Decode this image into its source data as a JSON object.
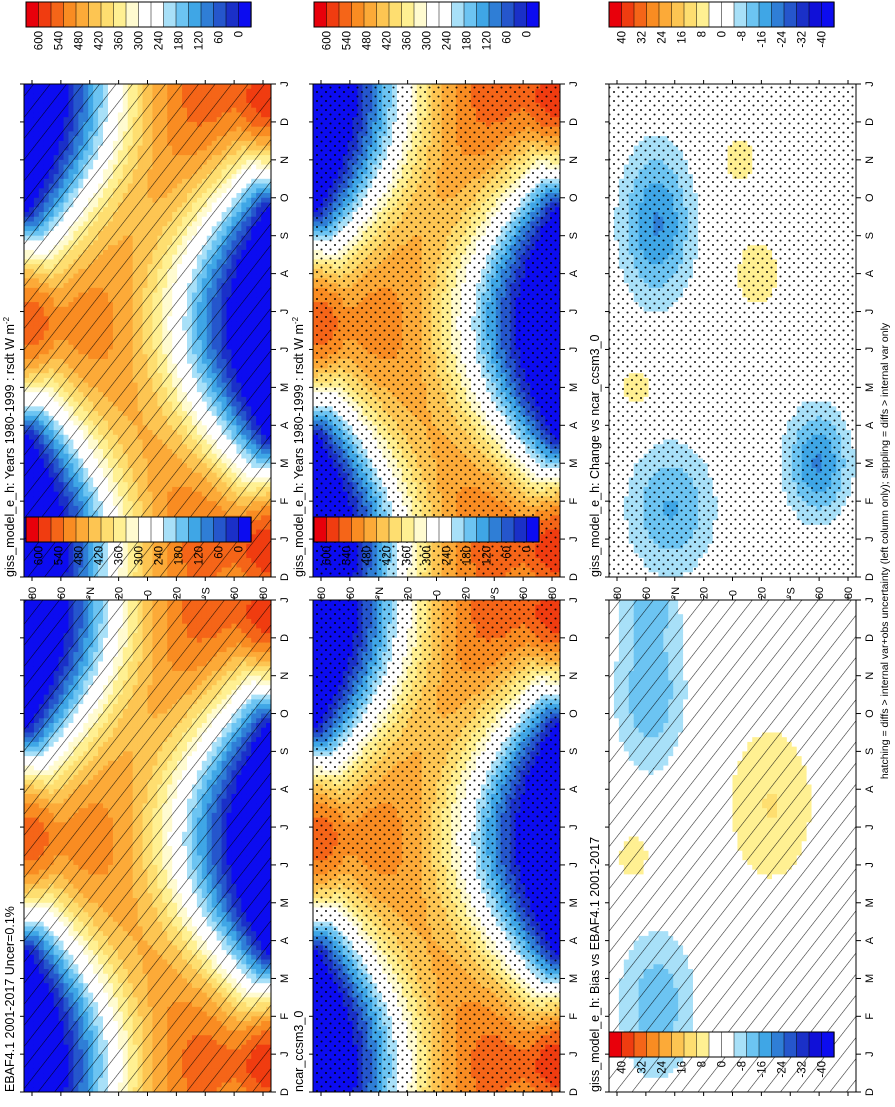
{
  "footnote": "hatching = diffs > internal var+obs uncertainty (left column only); stippling = diffs > internal var only",
  "chart_data": [
    {
      "type": "heatmap",
      "title": "giss_model_e_h: Years 1980-1999 : rsdt W m",
      "title_sup": "-2",
      "month_ticks": [
        "D",
        "J",
        "F",
        "M",
        "A",
        "M",
        "J",
        "J",
        "A",
        "S",
        "O",
        "N",
        "D",
        "J"
      ],
      "lat_ticks": [
        "80",
        "60",
        "°N",
        "20",
        "0",
        "20",
        "°S",
        "60",
        "80"
      ],
      "colorbar": {
        "labels": [
          "600",
          "540",
          "480",
          "420",
          "360",
          "300",
          "240",
          "180",
          "120",
          "60",
          "0"
        ],
        "kind": "abs"
      },
      "overlay": "hatch",
      "field": "abs"
    },
    {
      "type": "heatmap",
      "title": "giss_model_e_h: Years 1980-1999 : rsdt W m",
      "title_sup": "-2",
      "month_ticks": [
        "D",
        "J",
        "F",
        "M",
        "A",
        "M",
        "J",
        "J",
        "A",
        "S",
        "O",
        "N",
        "D",
        "J"
      ],
      "lat_ticks": [
        "80",
        "60",
        "°N",
        "20",
        "0",
        "20",
        "°S",
        "60",
        "80"
      ],
      "colorbar": {
        "labels": [
          "600",
          "540",
          "480",
          "420",
          "360",
          "300",
          "240",
          "180",
          "120",
          "60",
          "0"
        ],
        "kind": "abs"
      },
      "overlay": "stipple",
      "field": "abs"
    },
    {
      "type": "heatmap",
      "title": "EBAF4.1 2001-2017 Uncer=0.1%",
      "title_sup": "",
      "month_ticks": [
        "D",
        "J",
        "F",
        "M",
        "A",
        "M",
        "J",
        "J",
        "A",
        "S",
        "O",
        "N",
        "D",
        "J"
      ],
      "lat_ticks": [
        "80",
        "60",
        "°N",
        "20",
        "0",
        "20",
        "°S",
        "60",
        "80"
      ],
      "colorbar": {
        "labels": [
          "600",
          "540",
          "480",
          "420",
          "360",
          "300",
          "240",
          "180",
          "120",
          "60",
          "0"
        ],
        "kind": "abs"
      },
      "overlay": "hatch",
      "field": "abs"
    },
    {
      "type": "heatmap",
      "title": "ncar_ccsm3_0",
      "title_sup": "",
      "month_ticks": [
        "D",
        "J",
        "F",
        "M",
        "A",
        "M",
        "J",
        "J",
        "A",
        "S",
        "O",
        "N",
        "D",
        "J"
      ],
      "lat_ticks": [
        "80",
        "60",
        "°N",
        "20",
        "0",
        "20",
        "°S",
        "60",
        "80"
      ],
      "colorbar": {
        "labels": [
          "600",
          "540",
          "480",
          "420",
          "360",
          "300",
          "240",
          "180",
          "120",
          "60",
          "0"
        ],
        "kind": "abs"
      },
      "overlay": "stipple",
      "field": "abs"
    },
    {
      "type": "heatmap",
      "title": "giss_model_e_h: Bias vs EBAF4.1 2001-2017",
      "title_sup": "",
      "month_ticks": [
        "D",
        "J",
        "F",
        "M",
        "A",
        "M",
        "J",
        "J",
        "A",
        "S",
        "O",
        "N",
        "D",
        "J"
      ],
      "lat_ticks": [
        "80",
        "60",
        "°N",
        "20",
        "0",
        "20",
        "°S",
        "60",
        "80"
      ],
      "colorbar": {
        "labels": [
          "40",
          "32",
          "24",
          "16",
          "8",
          "0",
          "-8",
          "-16",
          "-24",
          "-32",
          "-40"
        ],
        "kind": "diff"
      },
      "overlay": "hatch",
      "field": "bias"
    },
    {
      "type": "heatmap",
      "title": "giss_model_e_h: Change vs ncar_ccsm3_0",
      "title_sup": "",
      "month_ticks": [
        "D",
        "J",
        "F",
        "M",
        "A",
        "M",
        "J",
        "J",
        "A",
        "S",
        "O",
        "N",
        "D",
        "J"
      ],
      "lat_ticks": [
        "80",
        "60",
        "°N",
        "20",
        "0",
        "20",
        "°S",
        "60",
        "80"
      ],
      "colorbar": {
        "labels": [
          "40",
          "32",
          "24",
          "16",
          "8",
          "0",
          "-8",
          "-16",
          "-24",
          "-32",
          "-40"
        ],
        "kind": "diff"
      },
      "overlay": "stipple",
      "field": "change"
    }
  ],
  "colors": {
    "abs_scale": [
      "#e8000b",
      "#f03c10",
      "#f56518",
      "#f98c22",
      "#fcaa38",
      "#fdc552",
      "#fede70",
      "#fff092",
      "#fffbd0",
      "#ffffff",
      "#ffffff",
      "#a8e0f8",
      "#6cc4f2",
      "#3fa6e6",
      "#2f7ed6",
      "#2556cc",
      "#1a30c8",
      "#0c0cf0"
    ],
    "diff_scale": [
      "#e8000b",
      "#f03c10",
      "#f56518",
      "#f98c22",
      "#fcaa38",
      "#fdc552",
      "#fede70",
      "#fff092",
      "#ffffff",
      "#ffffff",
      "#a8e0f8",
      "#6cc4f2",
      "#3fa6e6",
      "#2f7ed6",
      "#2556cc",
      "#1a30c8",
      "#1010d8",
      "#0c0cf0"
    ]
  }
}
